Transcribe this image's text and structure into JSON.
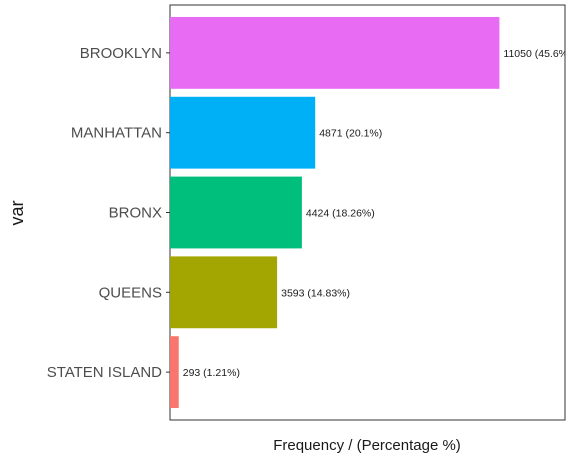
{
  "chart_data": {
    "type": "bar",
    "orientation": "horizontal",
    "xlabel": "Frequency / (Percentage %)",
    "ylabel": "var",
    "grid": false,
    "legend": "none",
    "categories": [
      "BROOKLYN",
      "MANHATTAN",
      "BRONX",
      "QUEENS",
      "STATEN ISLAND"
    ],
    "values": [
      11050,
      4871,
      4424,
      3593,
      293
    ],
    "data_labels": [
      "11050 (45.6%",
      "4871 (20.1%)",
      "4424 (18.26%)",
      "3593 (14.83%)",
      "293 (1.21%)"
    ],
    "colors": [
      "#e76bf3",
      "#00b0f6",
      "#00bf7d",
      "#a3a500",
      "#f8766d"
    ],
    "xlim": [
      0,
      13250
    ]
  }
}
